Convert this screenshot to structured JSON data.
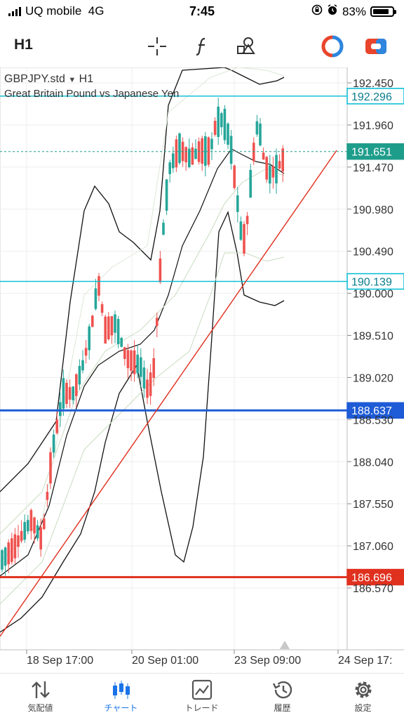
{
  "status": {
    "carrier": "UQ mobile",
    "network": "4G",
    "time": "7:45",
    "battery": "83%",
    "battery_level": 0.83
  },
  "toolbar": {
    "timeframe": "H1"
  },
  "chart": {
    "symbol": "GBPJPY.std",
    "timeframe": "H1",
    "description": "Great Britain Pound vs Japanese Yen",
    "price_levels": [
      "192.450",
      "191.960",
      "191.470",
      "190.980",
      "190.490",
      "190.000",
      "189.510",
      "189.020",
      "188.530",
      "188.040",
      "187.550",
      "187.060",
      "186.570"
    ],
    "time_labels": [
      "18 Sep 17:00",
      "20 Sep 01:00",
      "23 Sep 09:00",
      "24 Sep 17:"
    ],
    "tags": {
      "cyan_top": "192.296",
      "current": "191.651",
      "cyan_bottom": "190.139",
      "blue": "188.637",
      "red": "186.696"
    },
    "colors": {
      "bull": "#26a69a",
      "bear": "#ef5350",
      "cyan": "#00bcd4",
      "blue": "#1e5bd6",
      "red": "#e0301e",
      "current": "#1f9d8b"
    }
  },
  "tabs": [
    {
      "label": "気配値",
      "icon": "quotes-icon"
    },
    {
      "label": "チャート",
      "icon": "chart-icon",
      "active": true
    },
    {
      "label": "トレード",
      "icon": "trade-icon"
    },
    {
      "label": "履歴",
      "icon": "history-icon"
    },
    {
      "label": "設定",
      "icon": "settings-icon"
    }
  ]
}
